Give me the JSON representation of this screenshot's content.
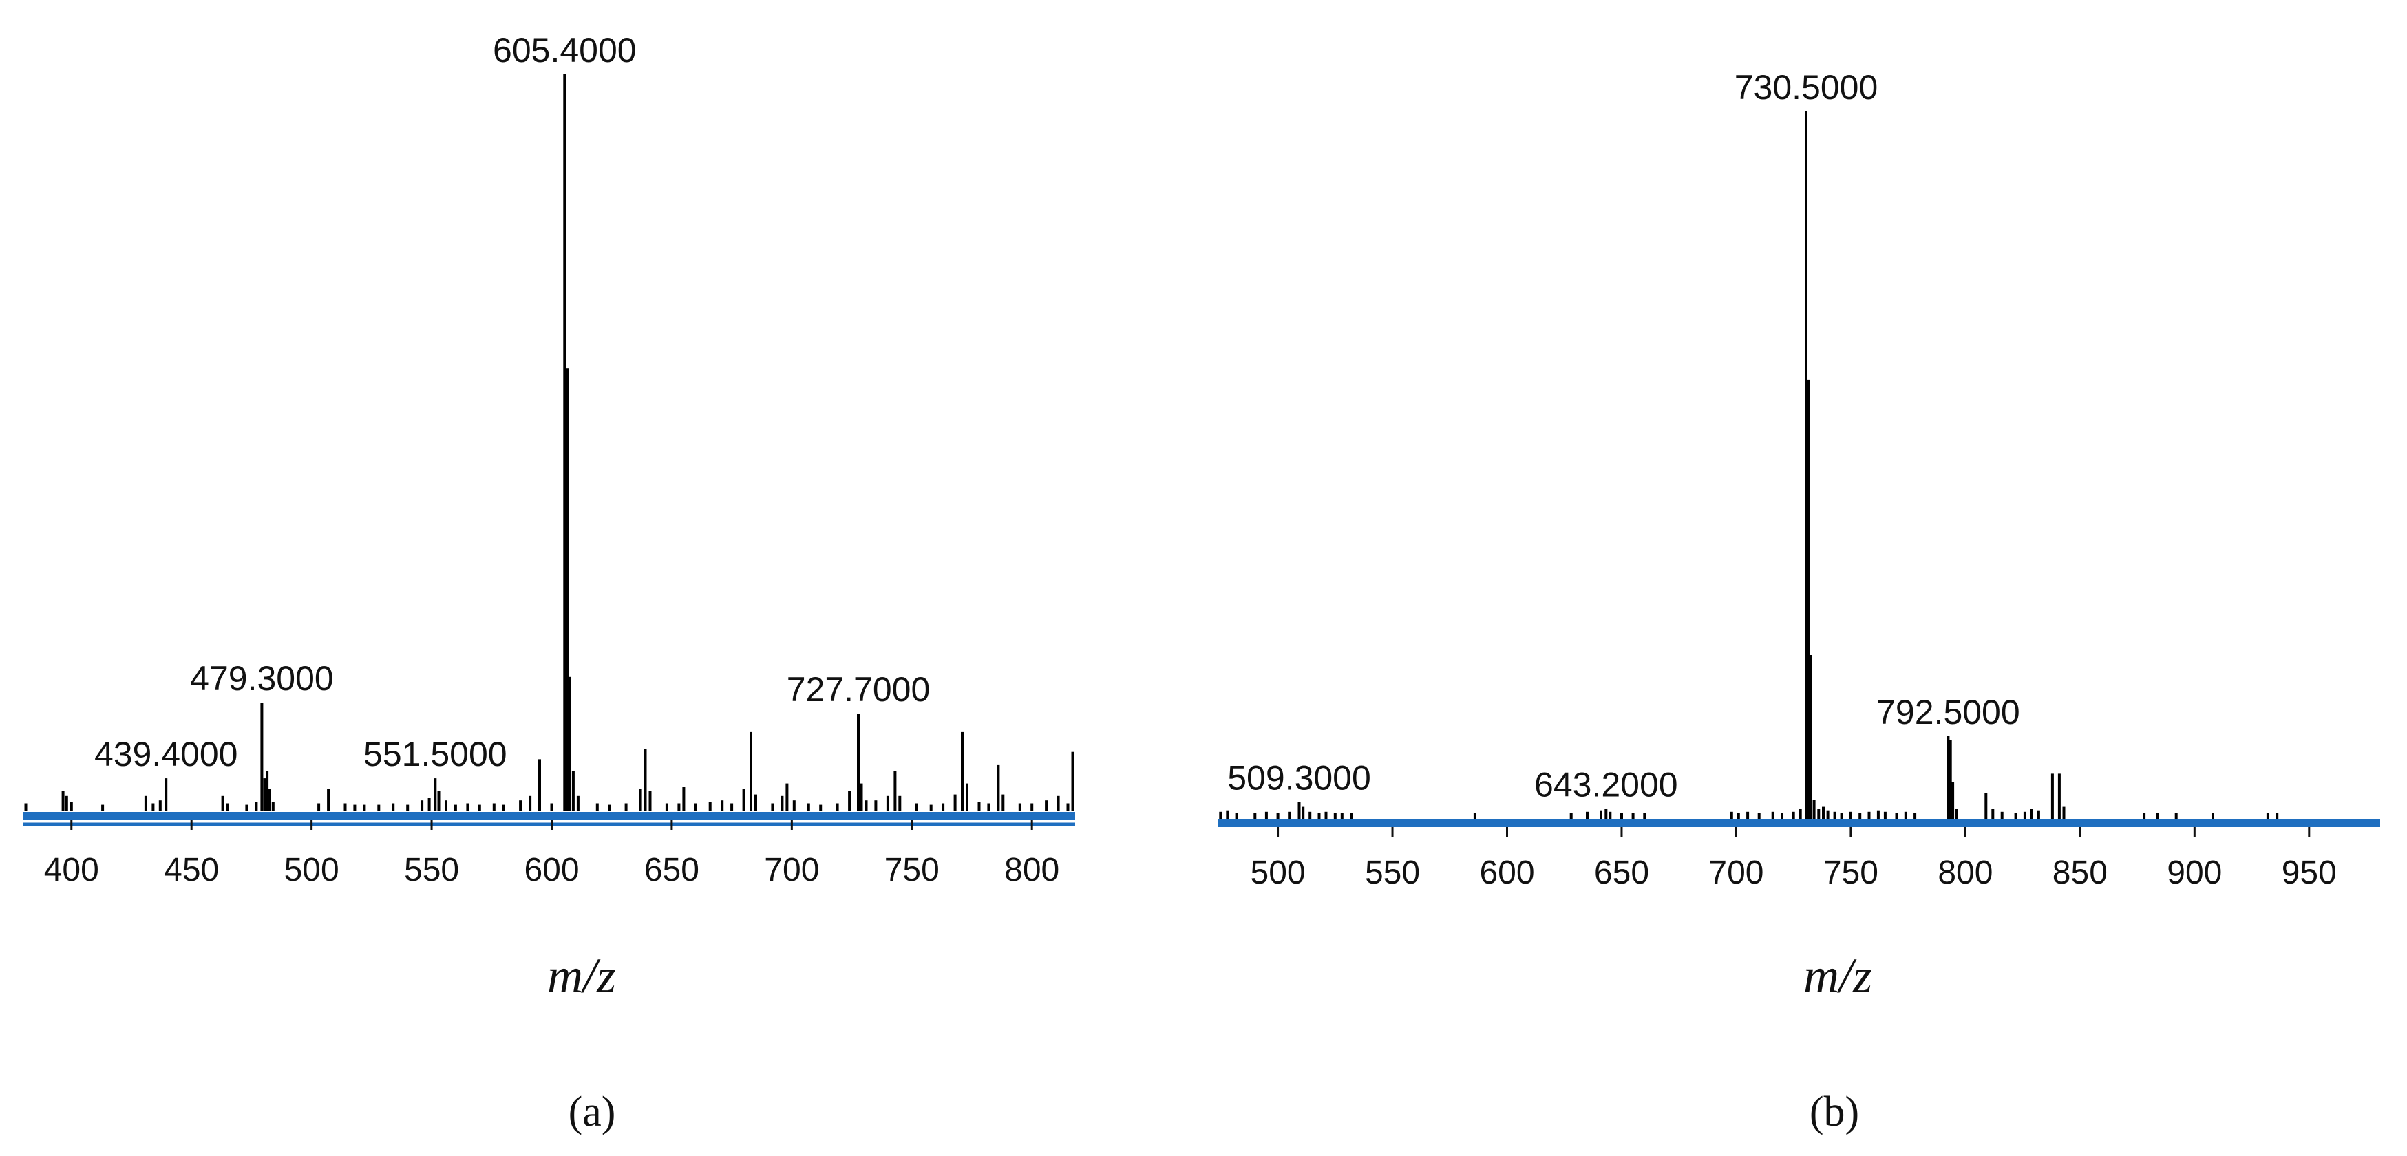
{
  "colors": {
    "axis": "#1f6fc0",
    "bar": "#000000",
    "text": "#111111"
  },
  "chart_data": [
    {
      "type": "bar",
      "panel_label": "(a)",
      "xlabel": "m/z",
      "xlim": [
        380,
        818
      ],
      "x_ticks": [
        400,
        450,
        500,
        550,
        600,
        650,
        700,
        750,
        800
      ],
      "ylim": [
        0,
        100
      ],
      "peaks": [
        {
          "x": 381,
          "y": 0.8
        },
        {
          "x": 396.5,
          "y": 2.5
        },
        {
          "x": 398,
          "y": 1.8
        },
        {
          "x": 400,
          "y": 1.0
        },
        {
          "x": 413,
          "y": 0.6
        },
        {
          "x": 431,
          "y": 1.8
        },
        {
          "x": 434,
          "y": 0.8
        },
        {
          "x": 437,
          "y": 1.2
        },
        {
          "x": 439.4,
          "y": 4.2
        },
        {
          "x": 463,
          "y": 1.8
        },
        {
          "x": 465,
          "y": 0.8
        },
        {
          "x": 473,
          "y": 0.6
        },
        {
          "x": 477,
          "y": 1.0
        },
        {
          "x": 479.3,
          "y": 14.5
        },
        {
          "x": 480.5,
          "y": 4.2
        },
        {
          "x": 481.5,
          "y": 5.2
        },
        {
          "x": 482.5,
          "y": 2.8
        },
        {
          "x": 484,
          "y": 1.0
        },
        {
          "x": 503,
          "y": 0.8
        },
        {
          "x": 507,
          "y": 2.8
        },
        {
          "x": 514,
          "y": 0.8
        },
        {
          "x": 518,
          "y": 0.6
        },
        {
          "x": 522,
          "y": 0.6
        },
        {
          "x": 528,
          "y": 0.6
        },
        {
          "x": 534,
          "y": 0.8
        },
        {
          "x": 540,
          "y": 0.6
        },
        {
          "x": 546,
          "y": 1.2
        },
        {
          "x": 549,
          "y": 1.5
        },
        {
          "x": 551.5,
          "y": 4.2
        },
        {
          "x": 553,
          "y": 2.5
        },
        {
          "x": 556,
          "y": 1.2
        },
        {
          "x": 560,
          "y": 0.6
        },
        {
          "x": 565,
          "y": 0.8
        },
        {
          "x": 570,
          "y": 0.6
        },
        {
          "x": 576,
          "y": 0.8
        },
        {
          "x": 580,
          "y": 0.6
        },
        {
          "x": 587,
          "y": 1.2
        },
        {
          "x": 591,
          "y": 1.8
        },
        {
          "x": 595,
          "y": 6.8
        },
        {
          "x": 600,
          "y": 0.8
        },
        {
          "x": 605.4,
          "y": 100
        },
        {
          "x": 606.5,
          "y": 60
        },
        {
          "x": 607.5,
          "y": 18
        },
        {
          "x": 609,
          "y": 5.2
        },
        {
          "x": 611,
          "y": 1.8
        },
        {
          "x": 619,
          "y": 0.8
        },
        {
          "x": 624,
          "y": 0.6
        },
        {
          "x": 631,
          "y": 0.8
        },
        {
          "x": 637,
          "y": 2.8
        },
        {
          "x": 639,
          "y": 8.2
        },
        {
          "x": 641,
          "y": 2.5
        },
        {
          "x": 648,
          "y": 0.8
        },
        {
          "x": 653,
          "y": 0.8
        },
        {
          "x": 655,
          "y": 3.0
        },
        {
          "x": 660,
          "y": 0.8
        },
        {
          "x": 666,
          "y": 1.0
        },
        {
          "x": 671,
          "y": 1.2
        },
        {
          "x": 675,
          "y": 0.8
        },
        {
          "x": 680,
          "y": 2.8
        },
        {
          "x": 683,
          "y": 10.5
        },
        {
          "x": 685,
          "y": 2.0
        },
        {
          "x": 692,
          "y": 0.8
        },
        {
          "x": 696,
          "y": 1.8
        },
        {
          "x": 698,
          "y": 3.5
        },
        {
          "x": 701,
          "y": 1.2
        },
        {
          "x": 707,
          "y": 0.8
        },
        {
          "x": 712,
          "y": 0.6
        },
        {
          "x": 719,
          "y": 0.8
        },
        {
          "x": 724,
          "y": 2.5
        },
        {
          "x": 727.7,
          "y": 13.0
        },
        {
          "x": 729,
          "y": 3.5
        },
        {
          "x": 731,
          "y": 1.2
        },
        {
          "x": 735,
          "y": 1.2
        },
        {
          "x": 740,
          "y": 1.8
        },
        {
          "x": 743,
          "y": 5.2
        },
        {
          "x": 745,
          "y": 1.8
        },
        {
          "x": 752,
          "y": 0.8
        },
        {
          "x": 758,
          "y": 0.6
        },
        {
          "x": 763,
          "y": 0.8
        },
        {
          "x": 768,
          "y": 2.0
        },
        {
          "x": 771,
          "y": 10.5
        },
        {
          "x": 773,
          "y": 3.5
        },
        {
          "x": 778,
          "y": 1.0
        },
        {
          "x": 782,
          "y": 0.8
        },
        {
          "x": 786,
          "y": 6.0
        },
        {
          "x": 788,
          "y": 2.0
        },
        {
          "x": 795,
          "y": 0.8
        },
        {
          "x": 800,
          "y": 0.8
        },
        {
          "x": 806,
          "y": 1.2
        },
        {
          "x": 811,
          "y": 1.8
        },
        {
          "x": 815,
          "y": 0.8
        },
        {
          "x": 817,
          "y": 7.8
        }
      ],
      "annotations": [
        {
          "text": "605.4000",
          "x": 605.4
        },
        {
          "text": "479.3000",
          "x": 479.3
        },
        {
          "text": "439.4000",
          "x": 439.4
        },
        {
          "text": "551.5000",
          "x": 551.5
        },
        {
          "text": "727.7000",
          "x": 727.7
        }
      ]
    },
    {
      "type": "bar",
      "panel_label": "(b)",
      "xlabel": "m/z",
      "xlim": [
        474,
        981
      ],
      "x_ticks": [
        500,
        550,
        600,
        650,
        700,
        750,
        800,
        850,
        900,
        950
      ],
      "ylim": [
        0,
        100
      ],
      "peaks": [
        {
          "x": 475,
          "y": 0.8
        },
        {
          "x": 478,
          "y": 1.0
        },
        {
          "x": 482,
          "y": 0.6
        },
        {
          "x": 490,
          "y": 0.6
        },
        {
          "x": 495,
          "y": 0.8
        },
        {
          "x": 500,
          "y": 0.6
        },
        {
          "x": 505,
          "y": 0.8
        },
        {
          "x": 509.3,
          "y": 2.2
        },
        {
          "x": 511,
          "y": 1.5
        },
        {
          "x": 514,
          "y": 0.8
        },
        {
          "x": 518,
          "y": 0.6
        },
        {
          "x": 521,
          "y": 0.8
        },
        {
          "x": 525,
          "y": 0.6
        },
        {
          "x": 528,
          "y": 0.6
        },
        {
          "x": 532,
          "y": 0.6
        },
        {
          "x": 586,
          "y": 0.6
        },
        {
          "x": 628,
          "y": 0.6
        },
        {
          "x": 635,
          "y": 0.8
        },
        {
          "x": 641,
          "y": 1.0
        },
        {
          "x": 643.2,
          "y": 1.2
        },
        {
          "x": 645,
          "y": 0.8
        },
        {
          "x": 650,
          "y": 0.6
        },
        {
          "x": 655,
          "y": 0.6
        },
        {
          "x": 660,
          "y": 0.6
        },
        {
          "x": 698,
          "y": 0.8
        },
        {
          "x": 701,
          "y": 0.6
        },
        {
          "x": 705,
          "y": 0.8
        },
        {
          "x": 710,
          "y": 0.6
        },
        {
          "x": 716,
          "y": 0.8
        },
        {
          "x": 720,
          "y": 0.6
        },
        {
          "x": 725,
          "y": 0.8
        },
        {
          "x": 728,
          "y": 1.2
        },
        {
          "x": 730.5,
          "y": 100
        },
        {
          "x": 731.5,
          "y": 62
        },
        {
          "x": 732.5,
          "y": 23
        },
        {
          "x": 734,
          "y": 2.5
        },
        {
          "x": 736,
          "y": 1.2
        },
        {
          "x": 738,
          "y": 1.5
        },
        {
          "x": 740,
          "y": 1.0
        },
        {
          "x": 743,
          "y": 0.8
        },
        {
          "x": 746,
          "y": 0.6
        },
        {
          "x": 750,
          "y": 0.8
        },
        {
          "x": 754,
          "y": 0.6
        },
        {
          "x": 758,
          "y": 0.8
        },
        {
          "x": 762,
          "y": 1.0
        },
        {
          "x": 765,
          "y": 0.8
        },
        {
          "x": 770,
          "y": 0.6
        },
        {
          "x": 774,
          "y": 0.8
        },
        {
          "x": 778,
          "y": 0.6
        },
        {
          "x": 792.5,
          "y": 11.5
        },
        {
          "x": 793.5,
          "y": 11.0
        },
        {
          "x": 794.5,
          "y": 5.0
        },
        {
          "x": 796,
          "y": 1.2
        },
        {
          "x": 809,
          "y": 3.5
        },
        {
          "x": 812,
          "y": 1.2
        },
        {
          "x": 816,
          "y": 0.8
        },
        {
          "x": 822,
          "y": 0.6
        },
        {
          "x": 826,
          "y": 0.8
        },
        {
          "x": 829,
          "y": 1.2
        },
        {
          "x": 832,
          "y": 1.0
        },
        {
          "x": 838,
          "y": 6.2
        },
        {
          "x": 841,
          "y": 6.2
        },
        {
          "x": 843,
          "y": 1.5
        },
        {
          "x": 878,
          "y": 0.6
        },
        {
          "x": 884,
          "y": 0.6
        },
        {
          "x": 892,
          "y": 0.6
        },
        {
          "x": 908,
          "y": 0.6
        },
        {
          "x": 932,
          "y": 0.6
        },
        {
          "x": 936,
          "y": 0.6
        }
      ],
      "annotations": [
        {
          "text": "730.5000",
          "x": 730.5
        },
        {
          "text": "792.5000",
          "x": 792.5
        },
        {
          "text": "509.3000",
          "x": 509.3
        },
        {
          "text": "643.2000",
          "x": 643.2
        }
      ]
    }
  ]
}
